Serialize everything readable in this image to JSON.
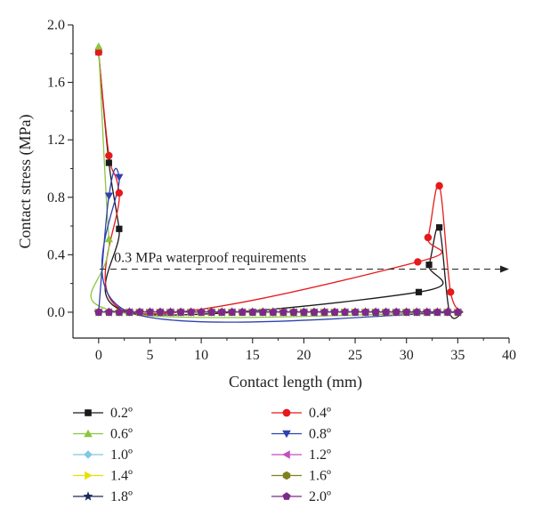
{
  "chart_data": {
    "type": "line",
    "title": "",
    "xlabel": "Contact length (mm)",
    "ylabel": "Contact stress (MPa)",
    "xlim": [
      -2.5,
      40
    ],
    "ylim": [
      -0.18,
      2.0
    ],
    "xticks": [
      0,
      5,
      10,
      15,
      20,
      25,
      30,
      35,
      40
    ],
    "yticks": [
      0.0,
      0.4,
      0.8,
      1.2,
      1.6,
      2.0
    ],
    "xtick_labels": [
      "0",
      "5",
      "10",
      "15",
      "20",
      "25",
      "30",
      "35",
      "40"
    ],
    "ytick_labels": [
      "0.0",
      "0.4",
      "0.8",
      "1.2",
      "1.6",
      "2.0"
    ],
    "grid": false,
    "legend_position": "bottom",
    "annotation": {
      "text": "0.3 MPa waterproof requirements",
      "y": 0.3,
      "style": "dashed arrow"
    },
    "x_grid": [
      0,
      1,
      2,
      3,
      4,
      5,
      6,
      7,
      8,
      9,
      10,
      11,
      12,
      13,
      14,
      15,
      16,
      17,
      18,
      19,
      20,
      21,
      22,
      23,
      24,
      25,
      26,
      27,
      28,
      29,
      30,
      31,
      32,
      33,
      34,
      35
    ],
    "series": [
      {
        "name": "0.2º",
        "color": "#1a1a1a",
        "marker": "square",
        "points": [
          [
            0,
            1.81
          ],
          [
            1,
            1.04
          ],
          [
            2,
            0.58
          ],
          [
            3,
            0.0
          ],
          [
            31.2,
            0.14
          ],
          [
            32.2,
            0.33
          ],
          [
            33.2,
            0.59
          ],
          [
            34.2,
            0.0
          ],
          [
            35.5,
            0.0
          ]
        ]
      },
      {
        "name": "0.4º",
        "color": "#e41a1c",
        "marker": "circle",
        "points": [
          [
            0,
            1.81
          ],
          [
            1,
            1.09
          ],
          [
            2,
            0.83
          ],
          [
            3,
            0.0
          ],
          [
            31.1,
            0.35
          ],
          [
            32.1,
            0.52
          ],
          [
            33.2,
            0.88
          ],
          [
            34.3,
            0.14
          ],
          [
            35.5,
            0.0
          ]
        ]
      },
      {
        "name": "0.6º",
        "color": "#8cc63f",
        "marker": "triangle-up",
        "points": [
          [
            0,
            1.85
          ],
          [
            1,
            0.51
          ],
          [
            2,
            0.0
          ],
          [
            35.5,
            0.0
          ]
        ]
      },
      {
        "name": "0.8º",
        "color": "#3040b0",
        "marker": "triangle-down",
        "points": [
          [
            0,
            0.0
          ],
          [
            1,
            0.81
          ],
          [
            2,
            0.94
          ],
          [
            3,
            0.0
          ],
          [
            35.5,
            0.0
          ]
        ]
      },
      {
        "name": "1.0º",
        "color": "#7fc8e8",
        "marker": "diamond",
        "points": [
          [
            0,
            0.0
          ],
          [
            35.5,
            0.0
          ]
        ]
      },
      {
        "name": "1.2º",
        "color": "#c050c0",
        "marker": "triangle-left",
        "points": [
          [
            0,
            0.0
          ],
          [
            35.5,
            0.0
          ]
        ]
      },
      {
        "name": "1.4º",
        "color": "#e8e000",
        "marker": "triangle-right",
        "points": [
          [
            0,
            0.0
          ],
          [
            35.5,
            0.0
          ]
        ]
      },
      {
        "name": "1.6º",
        "color": "#808020",
        "marker": "hexagon",
        "points": [
          [
            0,
            0.0
          ],
          [
            35.5,
            0.0
          ]
        ]
      },
      {
        "name": "1.8º",
        "color": "#1a2a5a",
        "marker": "star",
        "points": [
          [
            0,
            0.0
          ],
          [
            35.5,
            0.0
          ]
        ]
      },
      {
        "name": "2.0º",
        "color": "#7b2a8a",
        "marker": "pentagon",
        "points": [
          [
            0,
            0.0
          ],
          [
            35.5,
            0.0
          ]
        ]
      }
    ]
  }
}
